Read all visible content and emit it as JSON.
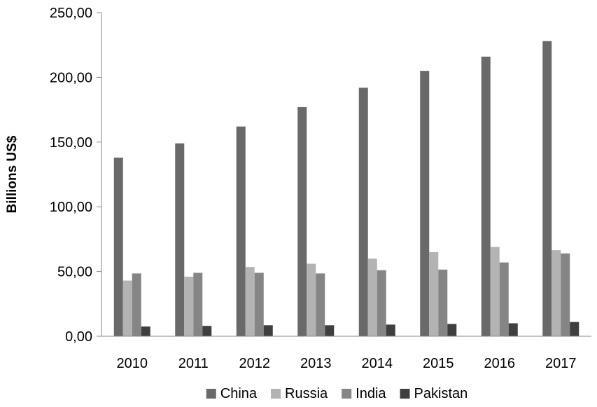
{
  "chart_data": {
    "type": "bar",
    "ylabel": "Billions US$",
    "xlabel": "",
    "ylim": [
      0,
      250
    ],
    "yticks": [
      "0,00",
      "50,00",
      "100,00",
      "150,00",
      "200,00",
      "250,00"
    ],
    "categories": [
      "2010",
      "2011",
      "2012",
      "2013",
      "2014",
      "2015",
      "2016",
      "2017"
    ],
    "series": [
      {
        "name": "China",
        "color": "#696969",
        "values": [
          138,
          149,
          162,
          177,
          192,
          205,
          216,
          228
        ]
      },
      {
        "name": "Russia",
        "color": "#b3b3b3",
        "values": [
          43,
          46,
          53.5,
          56,
          60,
          65,
          69,
          66.5
        ]
      },
      {
        "name": "India",
        "color": "#858585",
        "values": [
          48.5,
          49,
          49,
          48.5,
          51,
          51.5,
          57,
          64
        ]
      },
      {
        "name": "Pakistan",
        "color": "#3f3f3f",
        "values": [
          7.5,
          8,
          8.5,
          8.5,
          9,
          9.5,
          10,
          11
        ]
      }
    ],
    "legend": "bottom",
    "grid": false
  }
}
